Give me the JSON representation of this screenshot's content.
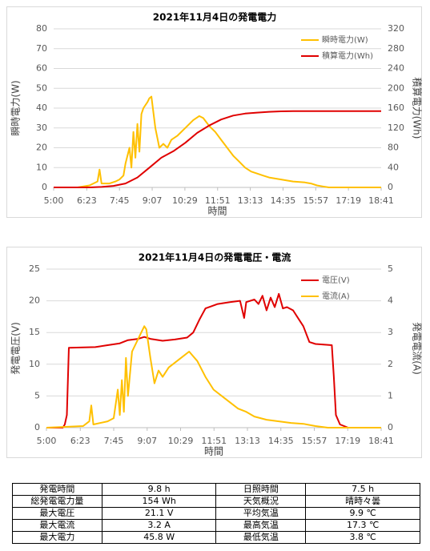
{
  "chart_data": [
    {
      "type": "line",
      "title": "2021年11月4日の発電電力",
      "x_label": "時間",
      "y_label": "瞬時電力(W)",
      "y2_label": "積算電力(Wh)",
      "xlim": [
        "5:00",
        "18:41"
      ],
      "xticks": [
        "5:00",
        "6:23",
        "7:45",
        "9:07",
        "10:29",
        "11:51",
        "13:13",
        "14:35",
        "15:57",
        "17:19",
        "18:41"
      ],
      "ylim": [
        0,
        80
      ],
      "yticks": [
        0,
        10,
        20,
        30,
        40,
        50,
        60,
        70,
        80
      ],
      "y2lim": [
        0,
        320
      ],
      "y2ticks": [
        0,
        40,
        80,
        120,
        160,
        200,
        240,
        280,
        320
      ],
      "grid": true,
      "legend": "upper right",
      "series": [
        {
          "name": "瞬時電力(W)",
          "color": "#FFC000",
          "x": [
            "5:00",
            "6:00",
            "6:30",
            "6:50",
            "6:55",
            "7:00",
            "7:20",
            "7:35",
            "7:45",
            "7:55",
            "8:00",
            "8:10",
            "8:15",
            "8:20",
            "8:25",
            "8:30",
            "8:35",
            "8:40",
            "8:45",
            "8:55",
            "9:00",
            "9:05",
            "9:10",
            "9:15",
            "9:20",
            "9:25",
            "9:35",
            "9:45",
            "9:55",
            "10:10",
            "10:30",
            "10:50",
            "11:05",
            "11:15",
            "11:30",
            "11:45",
            "12:00",
            "12:15",
            "12:30",
            "12:45",
            "13:00",
            "13:15",
            "13:30",
            "13:45",
            "14:00",
            "14:15",
            "14:30",
            "15:00",
            "15:30",
            "15:45",
            "16:00",
            "16:15",
            "16:30",
            "18:41"
          ],
          "values": [
            0,
            0,
            1,
            3,
            9,
            2,
            2,
            3,
            4,
            6,
            12,
            20,
            10,
            28,
            15,
            32,
            18,
            37,
            40,
            43,
            45,
            45.8,
            38,
            30,
            25,
            20,
            22,
            20,
            24,
            26,
            30,
            34,
            36,
            35,
            31,
            28,
            24,
            20,
            16,
            13,
            10,
            8,
            7,
            6,
            5,
            4.5,
            4,
            3,
            2.5,
            2,
            1,
            0.5,
            0,
            0
          ]
        },
        {
          "name": "積算電力(Wh)",
          "color": "#E00000",
          "axis": "y2",
          "x": [
            "5:00",
            "6:30",
            "7:00",
            "7:30",
            "8:00",
            "8:30",
            "9:00",
            "9:30",
            "10:00",
            "10:30",
            "11:00",
            "11:30",
            "12:00",
            "12:30",
            "13:00",
            "13:30",
            "14:00",
            "14:30",
            "15:00",
            "16:00",
            "18:41"
          ],
          "values": [
            0,
            0,
            1,
            3,
            8,
            20,
            40,
            60,
            73,
            90,
            110,
            125,
            137,
            145,
            149,
            151,
            152.5,
            153.5,
            154,
            154,
            154
          ]
        }
      ]
    },
    {
      "type": "line",
      "title": "2021年11月4日の発電電圧・電流",
      "x_label": "時間",
      "y_label": "発電電圧(V)",
      "y2_label": "発電電流(A)",
      "xlim": [
        "5:00",
        "18:41"
      ],
      "xticks": [
        "5:00",
        "6:23",
        "7:45",
        "9:07",
        "10:29",
        "11:51",
        "13:13",
        "14:35",
        "15:57",
        "17:19",
        "18:41"
      ],
      "ylim": [
        0,
        25
      ],
      "yticks": [
        0,
        5,
        10,
        15,
        20,
        25
      ],
      "y2lim": [
        0,
        5
      ],
      "y2ticks": [
        0,
        1,
        2,
        3,
        4,
        5
      ],
      "grid": true,
      "legend": "upper right",
      "series": [
        {
          "name": "電圧(V)",
          "color": "#E00000",
          "x": [
            "5:00",
            "5:40",
            "5:45",
            "5:50",
            "5:55",
            "7:00",
            "7:30",
            "8:00",
            "8:20",
            "8:45",
            "9:00",
            "9:15",
            "9:45",
            "10:15",
            "10:45",
            "11:00",
            "11:15",
            "11:30",
            "12:00",
            "12:30",
            "12:55",
            "13:05",
            "13:10",
            "13:30",
            "13:40",
            "13:50",
            "14:00",
            "14:10",
            "14:20",
            "14:30",
            "14:40",
            "14:50",
            "15:05",
            "15:15",
            "15:30",
            "15:45",
            "16:00",
            "16:40",
            "16:45",
            "16:50",
            "17:00",
            "17:20",
            "18:41"
          ],
          "values": [
            0,
            0,
            0.5,
            2,
            12.6,
            12.7,
            13,
            13.3,
            13.8,
            14,
            14.3,
            14,
            13.7,
            13.9,
            14.2,
            15,
            17,
            18.8,
            19.5,
            19.8,
            20,
            17.3,
            19.8,
            20.2,
            19.5,
            20.8,
            18.5,
            20.5,
            19,
            21.1,
            18.8,
            19,
            18.5,
            17.5,
            16,
            13.5,
            13.2,
            13,
            8,
            2,
            0.5,
            0,
            0
          ]
        },
        {
          "name": "電流(A)",
          "color": "#FFC000",
          "axis": "y2",
          "x": [
            "5:00",
            "6:30",
            "6:45",
            "6:50",
            "6:55",
            "7:30",
            "7:45",
            "7:55",
            "8:00",
            "8:05",
            "8:10",
            "8:15",
            "8:20",
            "8:30",
            "8:45",
            "9:00",
            "9:05",
            "9:15",
            "9:25",
            "9:35",
            "9:45",
            "10:00",
            "10:30",
            "10:50",
            "11:10",
            "11:30",
            "11:50",
            "12:10",
            "12:30",
            "12:50",
            "13:10",
            "13:30",
            "14:00",
            "14:30",
            "15:00",
            "15:30",
            "16:00",
            "16:30",
            "18:41"
          ],
          "values": [
            0,
            0.05,
            0.2,
            0.7,
            0.1,
            0.2,
            0.3,
            1.2,
            0.4,
            1.5,
            0.5,
            2.2,
            1,
            2.4,
            2.8,
            3.2,
            3.1,
            2.2,
            1.4,
            1.8,
            1.6,
            1.9,
            2.2,
            2.4,
            2.1,
            1.6,
            1.2,
            1,
            0.8,
            0.6,
            0.5,
            0.35,
            0.25,
            0.2,
            0.15,
            0.12,
            0.05,
            0,
            0
          ]
        }
      ]
    }
  ],
  "table": {
    "rows": [
      [
        "発電時間",
        "9.8 h",
        "日照時間",
        "7.5 h"
      ],
      [
        "総発電電力量",
        "154 Wh",
        "天気概況",
        "晴時々曇"
      ],
      [
        "最大電圧",
        "21.1 V",
        "平均気温",
        "9.9 ℃"
      ],
      [
        "最大電流",
        "3.2 A",
        "最高気温",
        "17.3 ℃"
      ],
      [
        "最大電力",
        "45.8 W",
        "最低気温",
        "3.8 ℃"
      ]
    ]
  }
}
